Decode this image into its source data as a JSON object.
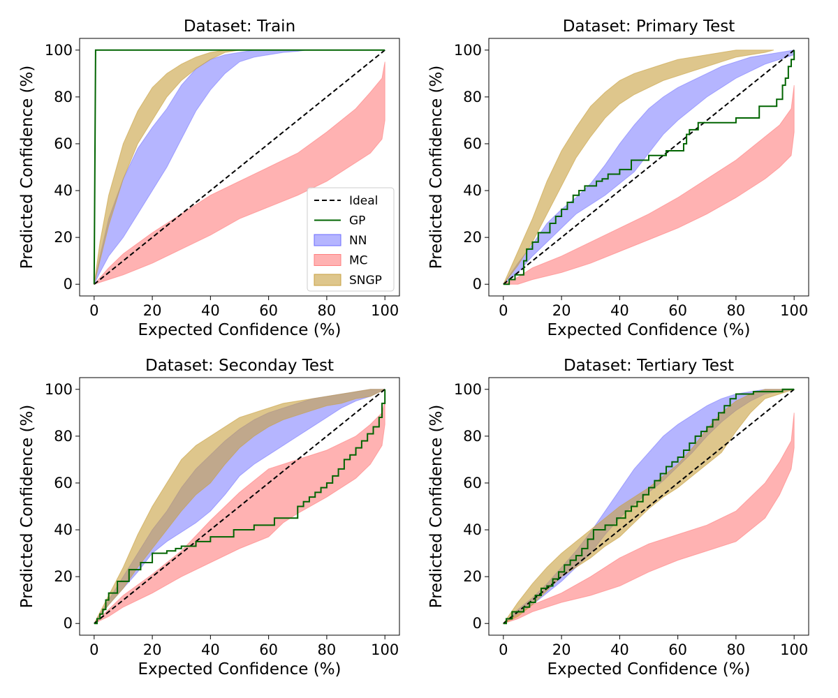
{
  "legend": {
    "entries": [
      {
        "key": "ideal",
        "label": "Ideal",
        "style": "dashed-line",
        "color": "#000000"
      },
      {
        "key": "gp",
        "label": "GP",
        "style": "line",
        "color": "#006400"
      },
      {
        "key": "nn",
        "label": "NN",
        "style": "band",
        "color": "#6b6bff"
      },
      {
        "key": "mc",
        "label": "MC",
        "style": "band",
        "color": "#ff7f7f"
      },
      {
        "key": "sngp",
        "label": "SNGP",
        "style": "band",
        "color": "#c8a040"
      }
    ],
    "placement": "lower-right",
    "panel": 0
  },
  "chart_data": [
    {
      "type": "area",
      "title": "Dataset: Train",
      "xlabel": "Expected Confidence (%)",
      "ylabel": "Predicted Confidence (%)",
      "xlim": [
        0,
        100
      ],
      "ylim": [
        0,
        100
      ],
      "xticks": [
        0,
        20,
        40,
        60,
        80,
        100
      ],
      "yticks": [
        0,
        20,
        40,
        60,
        80,
        100
      ],
      "series": [
        {
          "name": "Ideal",
          "kind": "line",
          "x": [
            0,
            100
          ],
          "y": [
            0,
            100
          ]
        },
        {
          "name": "GP",
          "kind": "line",
          "x": [
            0,
            0.5,
            100
          ],
          "y": [
            0,
            100,
            100
          ]
        },
        {
          "name": "NN",
          "kind": "band",
          "x": [
            0,
            2,
            5,
            10,
            15,
            20,
            25,
            30,
            35,
            40,
            45,
            50,
            55,
            60,
            65,
            70,
            73
          ],
          "lower": [
            0,
            5,
            12,
            20,
            30,
            40,
            50,
            62,
            74,
            83,
            90,
            95,
            97,
            98,
            99,
            99.5,
            100
          ],
          "upper": [
            0,
            12,
            28,
            45,
            58,
            67,
            75,
            85,
            92,
            96,
            98,
            99,
            100,
            100,
            100,
            100,
            100
          ]
        },
        {
          "name": "MC",
          "kind": "band",
          "x": [
            0,
            5,
            10,
            20,
            30,
            40,
            50,
            60,
            70,
            80,
            90,
            95,
            99,
            100
          ],
          "lower": [
            0,
            2,
            4,
            9,
            15,
            21,
            28,
            33,
            38,
            44,
            52,
            56,
            62,
            70
          ],
          "upper": [
            0,
            7,
            13,
            22,
            30,
            38,
            44,
            50,
            56,
            65,
            75,
            82,
            88,
            95
          ]
        },
        {
          "name": "SNGP",
          "kind": "band",
          "x": [
            0,
            2,
            5,
            10,
            15,
            20,
            25,
            30,
            35,
            40,
            45,
            50
          ],
          "lower": [
            0,
            10,
            25,
            45,
            60,
            70,
            80,
            87,
            92,
            96,
            99,
            100
          ],
          "upper": [
            0,
            18,
            38,
            60,
            74,
            84,
            90,
            94,
            97,
            99,
            100,
            100
          ]
        }
      ]
    },
    {
      "type": "area",
      "title": "Dataset: Primary Test",
      "xlabel": "Expected Confidence (%)",
      "ylabel": "Predicted Confidence (%)",
      "xlim": [
        0,
        100
      ],
      "ylim": [
        0,
        100
      ],
      "xticks": [
        0,
        20,
        40,
        60,
        80,
        100
      ],
      "yticks": [
        0,
        20,
        40,
        60,
        80,
        100
      ],
      "series": [
        {
          "name": "Ideal",
          "kind": "line",
          "x": [
            0,
            100
          ],
          "y": [
            0,
            100
          ]
        },
        {
          "name": "GP",
          "kind": "step",
          "x": [
            0,
            2,
            4,
            6,
            7,
            8,
            10,
            12,
            16,
            18,
            20,
            22,
            24,
            26,
            28,
            32,
            34,
            36,
            40,
            44,
            50,
            56,
            62,
            63,
            64,
            67,
            80,
            88,
            94,
            96,
            97,
            98,
            99,
            100
          ],
          "y": [
            0,
            2,
            4,
            4,
            10,
            15,
            18,
            22,
            26,
            29,
            32,
            35,
            38,
            40,
            42,
            44,
            45,
            47,
            49,
            53,
            55,
            57,
            60,
            64,
            66,
            69,
            71,
            76,
            79,
            85,
            88,
            93,
            96,
            100
          ]
        },
        {
          "name": "NN",
          "kind": "band",
          "x": [
            0,
            5,
            10,
            15,
            20,
            25,
            30,
            35,
            40,
            45,
            50,
            55,
            60,
            65,
            70,
            75,
            80,
            85,
            90,
            95,
            100
          ],
          "lower": [
            0,
            5,
            12,
            18,
            24,
            30,
            34,
            38,
            43,
            48,
            56,
            64,
            70,
            75,
            80,
            84,
            88,
            91,
            94,
            96,
            98
          ],
          "upper": [
            0,
            9,
            17,
            26,
            32,
            37,
            43,
            51,
            60,
            68,
            75,
            80,
            84,
            87,
            90,
            93,
            95,
            97,
            98,
            99,
            100
          ]
        },
        {
          "name": "MC",
          "kind": "band",
          "x": [
            0,
            5,
            10,
            20,
            30,
            40,
            50,
            60,
            70,
            80,
            90,
            95,
            99,
            100
          ],
          "lower": [
            0,
            0,
            2,
            5,
            9,
            14,
            19,
            24,
            30,
            37,
            45,
            50,
            55,
            65
          ],
          "upper": [
            0,
            3,
            7,
            12,
            18,
            24,
            30,
            37,
            45,
            53,
            63,
            68,
            75,
            85
          ]
        },
        {
          "name": "SNGP",
          "kind": "band",
          "x": [
            0,
            5,
            10,
            15,
            20,
            25,
            30,
            35,
            40,
            45,
            50,
            55,
            60,
            65,
            70,
            75,
            80,
            85,
            90,
            93
          ],
          "lower": [
            0,
            8,
            18,
            30,
            42,
            54,
            63,
            71,
            77,
            81,
            84,
            87,
            89,
            91,
            93,
            95,
            97,
            98,
            99,
            100
          ],
          "upper": [
            0,
            14,
            28,
            44,
            57,
            67,
            76,
            82,
            87,
            90,
            92,
            94,
            96,
            97,
            98,
            99,
            100,
            100,
            100,
            100
          ]
        }
      ]
    },
    {
      "type": "area",
      "title": "Dataset: Seconday Test",
      "xlabel": "Expected Confidence (%)",
      "ylabel": "Predicted Confidence (%)",
      "xlim": [
        0,
        100
      ],
      "ylim": [
        0,
        100
      ],
      "xticks": [
        0,
        20,
        40,
        60,
        80,
        100
      ],
      "yticks": [
        0,
        20,
        40,
        60,
        80,
        100
      ],
      "series": [
        {
          "name": "Ideal",
          "kind": "line",
          "x": [
            0,
            100
          ],
          "y": [
            0,
            100
          ]
        },
        {
          "name": "GP",
          "kind": "step",
          "x": [
            0,
            1,
            2,
            3,
            4,
            5,
            8,
            12,
            16,
            20,
            22,
            25,
            28,
            30,
            35,
            40,
            48,
            55,
            62,
            68,
            70,
            72,
            74,
            76,
            78,
            80,
            82,
            84,
            86,
            88,
            90,
            92,
            94,
            96,
            98,
            99,
            100
          ],
          "y": [
            0,
            2,
            4,
            6,
            10,
            13,
            18,
            23,
            26,
            30,
            30,
            31,
            32,
            33,
            35,
            37,
            40,
            42,
            45,
            45,
            50,
            52,
            54,
            56,
            58,
            60,
            63,
            66,
            70,
            72,
            75,
            78,
            81,
            84,
            88,
            94,
            100
          ]
        },
        {
          "name": "NN",
          "kind": "band",
          "x": [
            0,
            5,
            10,
            15,
            20,
            25,
            30,
            35,
            40,
            45,
            50,
            55,
            60,
            65,
            70,
            75,
            80,
            85,
            90,
            95,
            100
          ],
          "lower": [
            0,
            8,
            15,
            22,
            30,
            35,
            39,
            43,
            48,
            55,
            63,
            68,
            72,
            76,
            80,
            84,
            88,
            92,
            95,
            97,
            100
          ],
          "upper": [
            0,
            10,
            20,
            30,
            40,
            48,
            58,
            66,
            72,
            78,
            83,
            87,
            90,
            92,
            94,
            96,
            97,
            98,
            99,
            100,
            100
          ]
        },
        {
          "name": "MC",
          "kind": "band",
          "x": [
            0,
            5,
            10,
            20,
            30,
            40,
            50,
            60,
            65,
            70,
            80,
            90,
            95,
            99,
            100
          ],
          "lower": [
            0,
            3,
            7,
            13,
            20,
            26,
            32,
            37,
            43,
            47,
            54,
            62,
            68,
            76,
            85
          ],
          "upper": [
            0,
            6,
            12,
            21,
            31,
            44,
            56,
            66,
            68,
            70,
            74,
            80,
            85,
            90,
            95
          ]
        },
        {
          "name": "SNGP",
          "kind": "band",
          "x": [
            0,
            5,
            10,
            15,
            20,
            25,
            30,
            35,
            40,
            45,
            50,
            55,
            60,
            65,
            70,
            75,
            80,
            85,
            90,
            95,
            100
          ],
          "lower": [
            0,
            8,
            15,
            24,
            32,
            40,
            48,
            55,
            60,
            68,
            75,
            80,
            84,
            87,
            89,
            91,
            93,
            94,
            96,
            97,
            100
          ],
          "upper": [
            0,
            12,
            24,
            38,
            50,
            60,
            70,
            76,
            80,
            84,
            88,
            90,
            92,
            94,
            95,
            96,
            97,
            98,
            99,
            100,
            100
          ]
        }
      ]
    },
    {
      "type": "area",
      "title": "Dataset: Tertiary Test",
      "xlabel": "Expected Confidence (%)",
      "ylabel": "Predicted Confidence (%)",
      "xlim": [
        0,
        100
      ],
      "ylim": [
        0,
        100
      ],
      "xticks": [
        0,
        20,
        40,
        60,
        80,
        100
      ],
      "yticks": [
        0,
        20,
        40,
        60,
        80,
        100
      ],
      "series": [
        {
          "name": "Ideal",
          "kind": "line",
          "x": [
            0,
            100
          ],
          "y": [
            0,
            100
          ]
        },
        {
          "name": "GP",
          "kind": "step",
          "x": [
            0,
            1,
            3,
            5,
            7,
            9,
            11,
            13,
            15,
            17,
            19,
            21,
            23,
            25,
            27,
            29,
            31,
            35,
            39,
            42,
            44,
            46,
            48,
            50,
            52,
            54,
            56,
            58,
            60,
            62,
            64,
            66,
            68,
            70,
            72,
            74,
            76,
            78,
            80,
            82,
            84,
            86,
            88,
            90,
            92,
            94,
            96,
            98,
            100
          ],
          "y": [
            0,
            2,
            5,
            5,
            7,
            9,
            12,
            15,
            16,
            19,
            22,
            25,
            27,
            29,
            32,
            36,
            40,
            42,
            45,
            48,
            50,
            52,
            55,
            58,
            61,
            64,
            67,
            69,
            71,
            74,
            77,
            80,
            82,
            84,
            87,
            90,
            93,
            96,
            98,
            98,
            98,
            99,
            99,
            99,
            99,
            99,
            100,
            100,
            100
          ]
        },
        {
          "name": "NN",
          "kind": "band",
          "x": [
            0,
            5,
            10,
            15,
            20,
            25,
            30,
            35,
            40,
            45,
            50,
            55,
            60,
            65,
            70,
            75,
            80,
            85,
            90,
            95,
            100
          ],
          "lower": [
            0,
            4,
            8,
            13,
            18,
            24,
            30,
            38,
            45,
            51,
            56,
            61,
            67,
            73,
            80,
            86,
            91,
            95,
            98,
            99,
            100
          ],
          "upper": [
            0,
            6,
            11,
            17,
            24,
            31,
            39,
            48,
            57,
            66,
            73,
            80,
            85,
            89,
            93,
            96,
            98,
            99,
            100,
            100,
            100
          ]
        },
        {
          "name": "MC",
          "kind": "band",
          "x": [
            0,
            5,
            10,
            20,
            30,
            40,
            50,
            60,
            70,
            80,
            90,
            95,
            99,
            100
          ],
          "lower": [
            0,
            2,
            5,
            9,
            12,
            16,
            22,
            27,
            31,
            35,
            45,
            55,
            66,
            75
          ],
          "upper": [
            0,
            4,
            8,
            13,
            20,
            28,
            34,
            38,
            42,
            48,
            60,
            69,
            78,
            90
          ]
        },
        {
          "name": "SNGP",
          "kind": "band",
          "x": [
            0,
            5,
            10,
            15,
            20,
            25,
            30,
            35,
            40,
            45,
            50,
            55,
            60,
            65,
            70,
            75,
            80,
            85,
            90,
            95,
            100
          ],
          "lower": [
            0,
            3,
            8,
            14,
            20,
            24,
            28,
            33,
            37,
            43,
            49,
            54,
            58,
            63,
            68,
            73,
            82,
            90,
            96,
            98,
            100
          ],
          "upper": [
            0,
            9,
            17,
            24,
            30,
            35,
            40,
            45,
            50,
            54,
            58,
            63,
            68,
            75,
            83,
            90,
            95,
            98,
            100,
            100,
            100
          ]
        }
      ]
    }
  ]
}
